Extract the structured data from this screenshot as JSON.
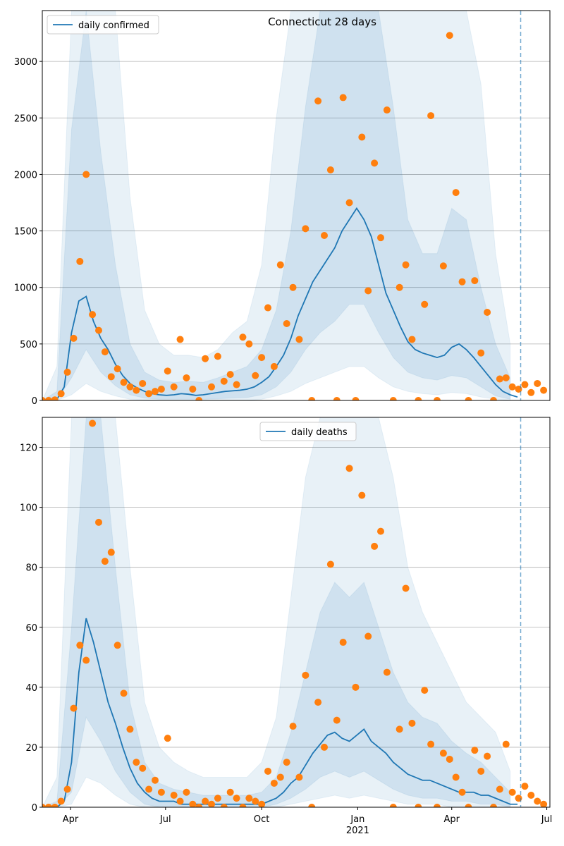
{
  "chart_data": [
    {
      "type": "line",
      "title": "Connecticut 28 days",
      "legend_loc": "upper left",
      "grid": "y",
      "xlim": [
        0,
        486
      ],
      "ylim": [
        0,
        3450
      ],
      "yticks": [
        0,
        500,
        1000,
        1500,
        2000,
        2500,
        3000
      ],
      "vline": {
        "x": 458,
        "color": "#1f77b4"
      },
      "bands": [
        {
          "color": "#1f77b4",
          "opacity": 0.1,
          "x": [
            0,
            14,
            28,
            42,
            56,
            70,
            84,
            98,
            112,
            126,
            140,
            154,
            168,
            182,
            196,
            210,
            224,
            238,
            252,
            266,
            280,
            294,
            308,
            322,
            336,
            350,
            364,
            378,
            392,
            406,
            420,
            434,
            448
          ],
          "lower": [
            0,
            0,
            50,
            150,
            80,
            40,
            10,
            5,
            0,
            0,
            0,
            0,
            0,
            0,
            0,
            10,
            40,
            80,
            150,
            200,
            250,
            300,
            300,
            200,
            120,
            80,
            60,
            50,
            70,
            60,
            30,
            10,
            0
          ],
          "upper": [
            0,
            300,
            3450,
            3450,
            3450,
            3450,
            1800,
            800,
            500,
            400,
            400,
            380,
            450,
            600,
            700,
            1200,
            2500,
            3450,
            3450,
            3450,
            3450,
            3450,
            3450,
            3450,
            3450,
            3450,
            3450,
            3450,
            3450,
            3450,
            2800,
            1300,
            500
          ]
        },
        {
          "color": "#1f77b4",
          "opacity": 0.12,
          "x": [
            0,
            14,
            28,
            42,
            56,
            70,
            84,
            98,
            112,
            126,
            140,
            154,
            168,
            182,
            196,
            210,
            224,
            238,
            252,
            266,
            280,
            294,
            308,
            322,
            336,
            350,
            364,
            378,
            392,
            406,
            420,
            434,
            448
          ],
          "lower": [
            0,
            0,
            200,
            450,
            250,
            130,
            50,
            20,
            10,
            10,
            10,
            10,
            15,
            20,
            25,
            50,
            120,
            250,
            450,
            600,
            700,
            850,
            850,
            600,
            380,
            250,
            200,
            180,
            220,
            200,
            120,
            40,
            10
          ],
          "upper": [
            0,
            80,
            2400,
            3450,
            2200,
            1200,
            500,
            250,
            180,
            160,
            170,
            160,
            200,
            250,
            300,
            450,
            800,
            1500,
            2600,
            3450,
            3450,
            3450,
            3450,
            3450,
            2600,
            1600,
            1300,
            1300,
            1700,
            1600,
            1000,
            500,
            200
          ]
        }
      ],
      "series": [
        {
          "name": "daily confirmed",
          "color": "#1f77b4",
          "x": [
            0,
            7,
            14,
            21,
            28,
            35,
            42,
            49,
            56,
            63,
            70,
            77,
            84,
            91,
            98,
            105,
            112,
            119,
            126,
            133,
            140,
            147,
            154,
            161,
            168,
            175,
            182,
            189,
            196,
            203,
            210,
            217,
            224,
            231,
            238,
            245,
            252,
            259,
            266,
            273,
            280,
            287,
            294,
            301,
            308,
            315,
            322,
            329,
            336,
            343,
            350,
            357,
            364,
            371,
            378,
            385,
            392,
            399,
            406,
            413,
            420,
            427,
            434,
            441,
            448,
            455
          ],
          "values": [
            0,
            2,
            10,
            120,
            600,
            880,
            920,
            700,
            550,
            450,
            320,
            220,
            150,
            110,
            80,
            60,
            50,
            45,
            50,
            60,
            55,
            45,
            50,
            60,
            70,
            80,
            85,
            90,
            100,
            120,
            160,
            210,
            300,
            400,
            550,
            750,
            900,
            1050,
            1150,
            1250,
            1350,
            1500,
            1600,
            1700,
            1600,
            1450,
            1200,
            950,
            800,
            650,
            520,
            450,
            420,
            400,
            380,
            400,
            470,
            500,
            450,
            380,
            300,
            220,
            140,
            80,
            50,
            30
          ]
        }
      ],
      "points": {
        "color": "#ff7f0e",
        "x": [
          0,
          6,
          12,
          18,
          24,
          30,
          36,
          42,
          48,
          54,
          60,
          66,
          72,
          78,
          84,
          90,
          96,
          102,
          108,
          114,
          120,
          126,
          132,
          138,
          144,
          150,
          156,
          162,
          168,
          174,
          180,
          186,
          192,
          198,
          204,
          210,
          216,
          222,
          228,
          234,
          240,
          246,
          252,
          258,
          264,
          270,
          276,
          282,
          288,
          294,
          300,
          306,
          312,
          318,
          324,
          330,
          336,
          342,
          348,
          354,
          360,
          366,
          372,
          378,
          384,
          390,
          396,
          402,
          408,
          414,
          420,
          426,
          432,
          438,
          444,
          450,
          456,
          462,
          468,
          474,
          480
        ],
        "values": [
          0,
          0,
          5,
          60,
          250,
          550,
          1230,
          2000,
          760,
          620,
          430,
          210,
          280,
          160,
          120,
          90,
          150,
          60,
          80,
          100,
          260,
          120,
          540,
          200,
          100,
          0,
          370,
          120,
          390,
          170,
          230,
          140,
          560,
          500,
          220,
          380,
          820,
          300,
          1200,
          680,
          1000,
          540,
          1520,
          0,
          2650,
          1460,
          2040,
          0,
          2680,
          1750,
          0,
          2330,
          970,
          2100,
          1440,
          2570,
          0,
          1000,
          1200,
          540,
          0,
          850,
          2520,
          0,
          1190,
          3230,
          1840,
          1050,
          0,
          1060,
          420,
          780,
          0,
          190,
          200,
          120,
          100,
          140,
          70,
          150,
          90
        ]
      }
    },
    {
      "type": "line",
      "legend_loc": "upper center",
      "grid": "y",
      "xlim": [
        0,
        486
      ],
      "ylim": [
        0,
        130
      ],
      "yticks": [
        0,
        20,
        40,
        60,
        80,
        100,
        120
      ],
      "xticks": [
        {
          "value": 27,
          "label": "Apr"
        },
        {
          "value": 118,
          "label": "Jul"
        },
        {
          "value": 210,
          "label": "Oct"
        },
        {
          "value": 302,
          "label": "Jan\n2021"
        },
        {
          "value": 392,
          "label": "Apr"
        },
        {
          "value": 483,
          "label": "Jul"
        }
      ],
      "vline": {
        "x": 458,
        "color": "#1f77b4"
      },
      "bands": [
        {
          "color": "#1f77b4",
          "opacity": 0.1,
          "x": [
            0,
            14,
            28,
            42,
            56,
            70,
            84,
            98,
            112,
            126,
            140,
            154,
            168,
            182,
            196,
            210,
            224,
            238,
            252,
            266,
            280,
            294,
            308,
            322,
            336,
            350,
            364,
            378,
            392,
            406,
            420,
            434,
            448
          ],
          "lower": [
            0,
            0,
            1,
            10,
            8,
            4,
            1,
            0,
            0,
            0,
            0,
            0,
            0,
            0,
            0,
            0,
            0,
            1,
            2,
            3,
            4,
            3,
            4,
            3,
            2,
            1,
            1,
            1,
            0,
            0,
            0,
            0,
            0
          ],
          "upper": [
            0,
            10,
            130,
            130,
            130,
            130,
            80,
            35,
            20,
            15,
            12,
            10,
            10,
            10,
            10,
            15,
            30,
            70,
            110,
            130,
            130,
            130,
            130,
            130,
            110,
            80,
            65,
            55,
            45,
            35,
            30,
            25,
            12
          ]
        },
        {
          "color": "#1f77b4",
          "opacity": 0.12,
          "x": [
            0,
            14,
            28,
            42,
            56,
            70,
            84,
            98,
            112,
            126,
            140,
            154,
            168,
            182,
            196,
            210,
            224,
            238,
            252,
            266,
            280,
            294,
            308,
            322,
            336,
            350,
            364,
            378,
            392,
            406,
            420,
            434,
            448
          ],
          "lower": [
            0,
            0,
            5,
            30,
            22,
            12,
            5,
            1,
            0,
            0,
            0,
            0,
            0,
            0,
            0,
            0,
            1,
            3,
            6,
            10,
            12,
            10,
            12,
            9,
            6,
            4,
            3,
            3,
            2,
            2,
            1,
            1,
            0
          ],
          "upper": [
            0,
            2,
            60,
            130,
            130,
            80,
            35,
            15,
            8,
            6,
            5,
            4,
            4,
            4,
            4,
            5,
            10,
            25,
            45,
            65,
            75,
            70,
            75,
            60,
            45,
            35,
            30,
            28,
            22,
            18,
            15,
            10,
            5
          ]
        }
      ],
      "series": [
        {
          "name": "daily deaths",
          "color": "#1f77b4",
          "x": [
            0,
            7,
            14,
            21,
            28,
            35,
            42,
            49,
            56,
            63,
            70,
            77,
            84,
            91,
            98,
            105,
            112,
            119,
            126,
            133,
            140,
            147,
            154,
            161,
            168,
            175,
            182,
            189,
            196,
            203,
            210,
            217,
            224,
            231,
            238,
            245,
            252,
            259,
            266,
            273,
            280,
            287,
            294,
            301,
            308,
            315,
            322,
            329,
            336,
            343,
            350,
            357,
            364,
            371,
            378,
            385,
            392,
            399,
            406,
            413,
            420,
            427,
            434,
            441,
            448,
            455
          ],
          "values": [
            0,
            0,
            0,
            2,
            15,
            45,
            63,
            55,
            45,
            35,
            28,
            20,
            13,
            8,
            5,
            3,
            2,
            2,
            2,
            1,
            1,
            1,
            1,
            1,
            1,
            1,
            1,
            1,
            1,
            1,
            1,
            2,
            3,
            5,
            8,
            10,
            14,
            18,
            21,
            24,
            25,
            23,
            22,
            24,
            26,
            22,
            20,
            18,
            15,
            13,
            11,
            10,
            9,
            9,
            8,
            7,
            6,
            5,
            5,
            5,
            4,
            4,
            3,
            2,
            1,
            1
          ]
        }
      ],
      "points": {
        "color": "#ff7f0e",
        "x": [
          0,
          6,
          12,
          18,
          24,
          30,
          36,
          42,
          48,
          54,
          60,
          66,
          72,
          78,
          84,
          90,
          96,
          102,
          108,
          114,
          120,
          126,
          132,
          138,
          144,
          150,
          156,
          162,
          168,
          174,
          180,
          186,
          192,
          198,
          204,
          210,
          216,
          222,
          228,
          234,
          240,
          246,
          252,
          258,
          264,
          270,
          276,
          282,
          288,
          294,
          300,
          306,
          312,
          318,
          324,
          330,
          336,
          342,
          348,
          354,
          360,
          366,
          372,
          378,
          384,
          390,
          396,
          402,
          408,
          414,
          420,
          426,
          432,
          438,
          444,
          450,
          456,
          462,
          468,
          474,
          480
        ],
        "values": [
          0,
          0,
          0,
          2,
          6,
          33,
          54,
          49,
          128,
          95,
          82,
          85,
          54,
          38,
          26,
          15,
          13,
          6,
          9,
          5,
          23,
          4,
          2,
          5,
          1,
          0,
          2,
          1,
          3,
          0,
          5,
          3,
          0,
          3,
          2,
          1,
          12,
          8,
          10,
          15,
          27,
          10,
          44,
          0,
          35,
          20,
          81,
          29,
          55,
          113,
          40,
          104,
          57,
          87,
          92,
          45,
          0,
          26,
          73,
          28,
          0,
          39,
          21,
          0,
          18,
          16,
          10,
          5,
          0,
          19,
          12,
          17,
          0,
          6,
          21,
          5,
          3,
          7,
          4,
          2,
          1
        ]
      }
    }
  ]
}
